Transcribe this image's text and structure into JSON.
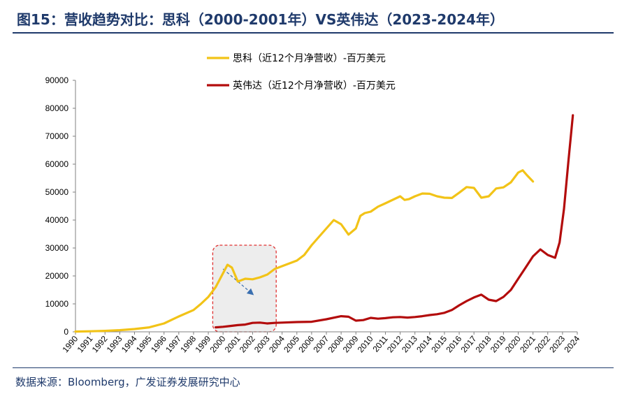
{
  "figure": {
    "title": "图15：营收趋势对比：思科（2000-2001年）VS英伟达（2023-2024年）",
    "source": "数据来源：Bloomberg，广发证券发展研究中心"
  },
  "colors": {
    "title": "#1f3a6b",
    "cisco": "#f2c317",
    "nvidia": "#b30c0c",
    "highlight_border": "#e03030",
    "highlight_fill": "#ededed",
    "arrow": "#3a6fb0"
  },
  "chart_data": {
    "type": "line",
    "title": "",
    "xlabel": "",
    "ylabel": "",
    "ylim": [
      0,
      90000
    ],
    "yticks": [
      0,
      10000,
      20000,
      30000,
      40000,
      50000,
      60000,
      70000,
      80000,
      90000
    ],
    "xlim": [
      1990,
      2024
    ],
    "xticks": [
      "1990",
      "1991",
      "1992",
      "1993",
      "1994",
      "1995",
      "1996",
      "1997",
      "1998",
      "1999",
      "2000",
      "2001",
      "2002",
      "2003",
      "2004",
      "2005",
      "2006",
      "2007",
      "2008",
      "2009",
      "2010",
      "2011",
      "2012",
      "2013",
      "2014",
      "2015",
      "2016",
      "2017",
      "2018",
      "2019",
      "2020",
      "2021",
      "2022",
      "2023",
      "2024"
    ],
    "legend_position": "top-center",
    "series": [
      {
        "name": "思科（近12个月净营收）-百万美元",
        "color_key": "cisco",
        "points": [
          [
            1990.0,
            100
          ],
          [
            1991.0,
            200
          ],
          [
            1992.0,
            350
          ],
          [
            1993.0,
            600
          ],
          [
            1994.0,
            1000
          ],
          [
            1995.0,
            1600
          ],
          [
            1996.0,
            3000
          ],
          [
            1997.0,
            5500
          ],
          [
            1998.0,
            7800
          ],
          [
            1998.5,
            10000
          ],
          [
            1999.0,
            12500
          ],
          [
            1999.5,
            16000
          ],
          [
            2000.0,
            21000
          ],
          [
            2000.3,
            24000
          ],
          [
            2000.6,
            23000
          ],
          [
            2001.0,
            18000
          ],
          [
            2001.5,
            19000
          ],
          [
            2002.0,
            18800
          ],
          [
            2002.5,
            19500
          ],
          [
            2003.0,
            20500
          ],
          [
            2003.5,
            22500
          ],
          [
            2004.0,
            23500
          ],
          [
            2005.0,
            25500
          ],
          [
            2005.5,
            27500
          ],
          [
            2006.0,
            31000
          ],
          [
            2006.5,
            34000
          ],
          [
            2007.0,
            37000
          ],
          [
            2007.5,
            40000
          ],
          [
            2008.0,
            38500
          ],
          [
            2008.5,
            34800
          ],
          [
            2009.0,
            37000
          ],
          [
            2009.3,
            41500
          ],
          [
            2009.6,
            42500
          ],
          [
            2010.0,
            43000
          ],
          [
            2010.5,
            44800
          ],
          [
            2011.0,
            46000
          ],
          [
            2012.0,
            48500
          ],
          [
            2012.3,
            47200
          ],
          [
            2012.6,
            47500
          ],
          [
            2013.0,
            48500
          ],
          [
            2013.5,
            49500
          ],
          [
            2014.0,
            49400
          ],
          [
            2014.5,
            48500
          ],
          [
            2015.0,
            48000
          ],
          [
            2015.5,
            47900
          ],
          [
            2016.0,
            49800
          ],
          [
            2016.5,
            51800
          ],
          [
            2017.0,
            51500
          ],
          [
            2017.5,
            48000
          ],
          [
            2018.0,
            48500
          ],
          [
            2018.5,
            51300
          ],
          [
            2019.0,
            51700
          ],
          [
            2019.5,
            53500
          ],
          [
            2020.0,
            57000
          ],
          [
            2020.3,
            57800
          ],
          [
            2020.6,
            56000
          ],
          [
            2021.0,
            53800
          ]
        ]
      },
      {
        "name": "英伟达（近12个月净营收）-百万美元",
        "color_key": "nvidia",
        "points": [
          [
            1999.5,
            1600
          ],
          [
            2000.0,
            1800
          ],
          [
            2000.5,
            2100
          ],
          [
            2001.0,
            2400
          ],
          [
            2001.5,
            2600
          ],
          [
            2002.0,
            3200
          ],
          [
            2002.5,
            3300
          ],
          [
            2003.0,
            3000
          ],
          [
            2003.5,
            3200
          ],
          [
            2004.0,
            3300
          ],
          [
            2005.0,
            3500
          ],
          [
            2006.0,
            3600
          ],
          [
            2007.0,
            4500
          ],
          [
            2008.0,
            5600
          ],
          [
            2008.5,
            5400
          ],
          [
            2009.0,
            4000
          ],
          [
            2009.5,
            4200
          ],
          [
            2010.0,
            5000
          ],
          [
            2010.5,
            4700
          ],
          [
            2011.0,
            4900
          ],
          [
            2011.5,
            5200
          ],
          [
            2012.0,
            5300
          ],
          [
            2012.5,
            5100
          ],
          [
            2013.0,
            5300
          ],
          [
            2013.5,
            5600
          ],
          [
            2014.0,
            6000
          ],
          [
            2014.5,
            6300
          ],
          [
            2015.0,
            6800
          ],
          [
            2015.5,
            7800
          ],
          [
            2016.0,
            9500
          ],
          [
            2016.5,
            11000
          ],
          [
            2017.0,
            12300
          ],
          [
            2017.5,
            13300
          ],
          [
            2018.0,
            11500
          ],
          [
            2018.5,
            11000
          ],
          [
            2019.0,
            12500
          ],
          [
            2019.5,
            15000
          ],
          [
            2020.0,
            19000
          ],
          [
            2020.5,
            23000
          ],
          [
            2021.0,
            27000
          ],
          [
            2021.5,
            29500
          ],
          [
            2022.0,
            27500
          ],
          [
            2022.5,
            26500
          ],
          [
            2022.8,
            32000
          ],
          [
            2023.1,
            44000
          ],
          [
            2023.4,
            61000
          ],
          [
            2023.7,
            77500
          ]
        ]
      }
    ],
    "annotation": {
      "label": "",
      "highlight_x": [
        1999.3,
        2003.6
      ],
      "highlight_y": [
        0,
        31000
      ],
      "arrow_from": [
        2000.0,
        22500
      ],
      "arrow_to": [
        2002.0,
        13500
      ]
    }
  }
}
